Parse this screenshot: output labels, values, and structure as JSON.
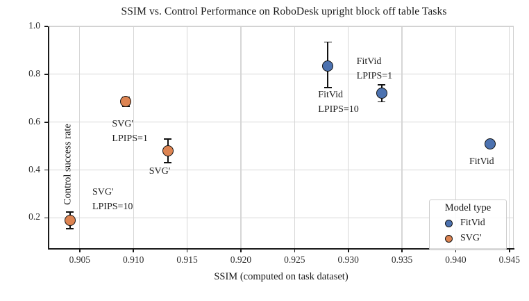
{
  "chart_data": {
    "type": "scatter",
    "title": "SSIM vs. Control Performance on RoboDesk upright block off table Tasks",
    "xlabel": "SSIM (computed on task dataset)",
    "ylabel": "Control success rate",
    "xlim": [
      0.9021,
      0.9454
    ],
    "ylim": [
      0.0705,
      1.0
    ],
    "grid": true,
    "grid_color": "#d6d6d6",
    "background_color": "#ffffff",
    "marker_edge_color": "#111111",
    "x_ticks": [
      {
        "v": 0.905,
        "label": "0.905"
      },
      {
        "v": 0.91,
        "label": "0.910"
      },
      {
        "v": 0.915,
        "label": "0.915"
      },
      {
        "v": 0.92,
        "label": "0.920"
      },
      {
        "v": 0.925,
        "label": "0.925"
      },
      {
        "v": 0.93,
        "label": "0.930"
      },
      {
        "v": 0.935,
        "label": "0.935"
      },
      {
        "v": 0.94,
        "label": "0.940"
      },
      {
        "v": 0.945,
        "label": "0.945"
      }
    ],
    "y_ticks": [
      {
        "v": 1.0,
        "label": "1.0"
      },
      {
        "v": 0.8,
        "label": "0.8"
      },
      {
        "v": 0.6,
        "label": "0.6"
      },
      {
        "v": 0.4,
        "label": "0.4"
      },
      {
        "v": 0.2,
        "label": "0.2"
      }
    ],
    "legend": {
      "title": "Model type",
      "position": "lower-right",
      "entries": [
        {
          "name": "FitVid",
          "color": "#4C72B0"
        },
        {
          "name": "SVG'",
          "color": "#DD8452"
        }
      ]
    },
    "series": [
      {
        "name": "FitVid",
        "color": "#4C72B0",
        "points": [
          {
            "x": 0.9281,
            "y": 0.835,
            "err_plus": 0.1,
            "err_minus": 0.09,
            "label_lines": [
              "FitVid",
              "LPIPS=10"
            ],
            "label_dx": -14,
            "label_dy": 31
          },
          {
            "x": 0.9331,
            "y": 0.72,
            "err_plus": 0.035,
            "err_minus": 0.035,
            "label_lines": [
              "FitVid",
              "LPIPS=1"
            ],
            "label_dx": -36,
            "label_dy": -56
          },
          {
            "x": 0.9432,
            "y": 0.51,
            "err_plus": 0,
            "err_minus": 0,
            "label_lines": [
              "FitVid"
            ],
            "label_dx": -30,
            "label_dy": 15
          }
        ]
      },
      {
        "name": "SVG'",
        "color": "#DD8452",
        "points": [
          {
            "x": 0.9093,
            "y": 0.685,
            "err_plus": 0.02,
            "err_minus": 0.02,
            "label_lines": [
              "SVG'",
              "LPIPS=1"
            ],
            "label_dx": -20,
            "label_dy": 22
          },
          {
            "x": 0.9132,
            "y": 0.48,
            "err_plus": 0.05,
            "err_minus": 0.05,
            "label_lines": [
              "SVG'"
            ],
            "label_dx": -27,
            "label_dy": 19
          },
          {
            "x": 0.9041,
            "y": 0.19,
            "err_plus": 0.035,
            "err_minus": 0.035,
            "label_lines": [
              "SVG'",
              "LPIPS=10"
            ],
            "label_dx": 32,
            "label_dy": -51
          }
        ]
      }
    ]
  }
}
